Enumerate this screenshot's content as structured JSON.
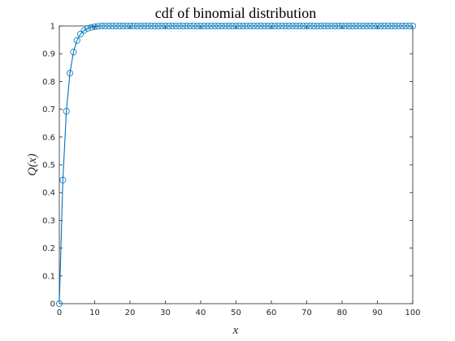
{
  "chart_data": {
    "type": "line",
    "title": "cdf of binomial distribution",
    "xlabel": "x",
    "ylabel": "Q(x)",
    "xlim": [
      0,
      100
    ],
    "ylim": [
      0,
      1
    ],
    "x_ticks": [
      "0",
      "10",
      "20",
      "30",
      "40",
      "50",
      "60",
      "70",
      "80",
      "90",
      "100"
    ],
    "y_ticks": [
      "0",
      "0.1",
      "0.2",
      "0.3",
      "0.4",
      "0.5",
      "0.6",
      "0.7",
      "0.8",
      "0.9",
      "1"
    ],
    "grid": false,
    "marker": "circle",
    "color": "#0072BD",
    "series": [
      {
        "x": [
          0,
          1,
          2,
          3,
          4,
          5,
          6,
          7,
          8,
          9,
          10,
          11,
          12,
          13,
          14,
          15,
          16,
          17,
          18,
          19,
          20,
          21,
          22,
          23,
          24,
          25,
          26,
          27,
          28,
          29,
          30,
          31,
          32,
          33,
          34,
          35,
          36,
          37,
          38,
          39,
          40,
          41,
          42,
          43,
          44,
          45,
          46,
          47,
          48,
          49,
          50,
          51,
          52,
          53,
          54,
          55,
          56,
          57,
          58,
          59,
          60,
          61,
          62,
          63,
          64,
          65,
          66,
          67,
          68,
          69,
          70,
          71,
          72,
          73,
          74,
          75,
          76,
          77,
          78,
          79,
          80,
          81,
          82,
          83,
          84,
          85,
          86,
          87,
          88,
          89,
          90,
          91,
          92,
          93,
          94,
          95,
          96,
          97,
          98,
          99,
          100
        ],
        "values": [
          0,
          0.445,
          0.693,
          0.83,
          0.906,
          0.948,
          0.971,
          0.984,
          0.991,
          0.995,
          0.997,
          0.999,
          1,
          1,
          1,
          1,
          1,
          1,
          1,
          1,
          1,
          1,
          1,
          1,
          1,
          1,
          1,
          1,
          1,
          1,
          1,
          1,
          1,
          1,
          1,
          1,
          1,
          1,
          1,
          1,
          1,
          1,
          1,
          1,
          1,
          1,
          1,
          1,
          1,
          1,
          1,
          1,
          1,
          1,
          1,
          1,
          1,
          1,
          1,
          1,
          1,
          1,
          1,
          1,
          1,
          1,
          1,
          1,
          1,
          1,
          1,
          1,
          1,
          1,
          1,
          1,
          1,
          1,
          1,
          1,
          1,
          1,
          1,
          1,
          1,
          1,
          1,
          1,
          1,
          1,
          1,
          1,
          1,
          1,
          1,
          1,
          1,
          1,
          1,
          1,
          1
        ]
      }
    ]
  }
}
